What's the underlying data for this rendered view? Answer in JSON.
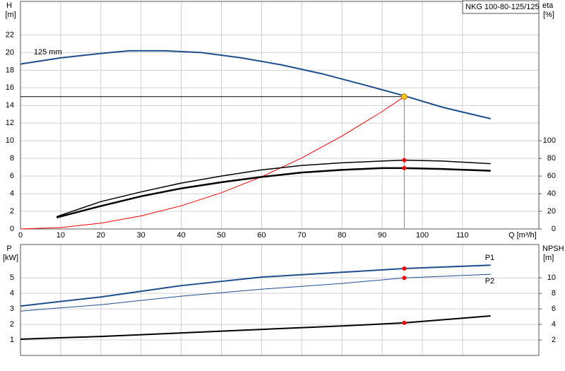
{
  "chart_data": [
    {
      "type": "line",
      "title": "NKG 100-80-125/125",
      "ylabel": "H",
      "yunit": "[m]",
      "y2label": "eta",
      "y2unit": "[%]",
      "xlabel": "Q [m³/h]",
      "xlim": [
        0,
        129
      ],
      "xticks": [
        0,
        10,
        20,
        30,
        40,
        50,
        60,
        70,
        80,
        90,
        100,
        110
      ],
      "xtick_labels": true,
      "ylim": [
        0,
        25.8
      ],
      "yticks": [
        0,
        2,
        4,
        6,
        8,
        10,
        12,
        14,
        16,
        18,
        20,
        22
      ],
      "y2lim": [
        0,
        258
      ],
      "y2ticks": [
        0,
        20,
        40,
        60,
        80,
        100
      ],
      "grid": true,
      "series": [
        {
          "name": "125 mm",
          "color": "#1f4e8c",
          "line_width": 2,
          "x": [
            0,
            10,
            20,
            27,
            36,
            45,
            55,
            65,
            75,
            85,
            95.5,
            105,
            117
          ],
          "values": [
            18.7,
            19.4,
            19.9,
            20.2,
            20.2,
            20.0,
            19.4,
            18.6,
            17.6,
            16.4,
            15.1,
            13.8,
            12.5
          ]
        },
        {
          "color": "#ff0000",
          "line_width": 1,
          "x": [
            0,
            10,
            20,
            30,
            40,
            50,
            60,
            70,
            80,
            90,
            95.5
          ],
          "values": [
            0,
            0.16,
            0.66,
            1.48,
            2.63,
            4.11,
            5.92,
            8.06,
            10.53,
            13.32,
            15.0
          ]
        },
        {
          "color": "#000000",
          "line_width": 1.5,
          "axis": "y2",
          "x": [
            9,
            20,
            30,
            40,
            50,
            60,
            70,
            80,
            90,
            95.5,
            105,
            117
          ],
          "values": [
            14,
            31,
            42,
            52,
            60,
            67,
            72,
            75,
            77,
            78,
            77,
            74
          ]
        },
        {
          "color": "#000000",
          "line_width": 2.5,
          "axis": "y2",
          "x": [
            9,
            20,
            30,
            40,
            50,
            60,
            70,
            80,
            90,
            95.5,
            105,
            117
          ],
          "values": [
            13,
            26,
            37,
            46,
            53,
            59,
            64,
            67,
            69,
            69,
            68,
            66
          ]
        }
      ],
      "points": [
        {
          "x": 95.5,
          "y": 15,
          "color": "#f5c518",
          "guides": true
        },
        {
          "x": 95.5,
          "y": 78,
          "axis": "y2",
          "color": "#ff0000"
        },
        {
          "x": 95.5,
          "y": 69,
          "axis": "y2",
          "color": "#ff0000"
        }
      ]
    },
    {
      "type": "line",
      "ylabel": "P",
      "yunit": "[kW]",
      "y2label": "NPSH",
      "y2unit": "[m]",
      "xlim": [
        0,
        129
      ],
      "xticks": [
        0,
        10,
        20,
        30,
        40,
        50,
        60,
        70,
        80,
        90,
        100,
        110
      ],
      "xtick_labels": false,
      "ylim": [
        0,
        7.15
      ],
      "yticks": [
        1,
        2,
        3,
        4,
        5
      ],
      "y2lim": [
        0,
        14.3
      ],
      "y2ticks": [
        2,
        4,
        6,
        8,
        10
      ],
      "grid": true,
      "series": [
        {
          "name": "P1",
          "color": "#1f4e8c",
          "line_width": 2,
          "x": [
            0,
            9,
            20,
            40,
            60,
            80,
            95.5,
            117
          ],
          "values": [
            3.18,
            3.45,
            3.77,
            4.5,
            5.05,
            5.36,
            5.6,
            5.82
          ]
        },
        {
          "name": "P2",
          "color": "#1f4e8c",
          "line_width": 1,
          "x": [
            0,
            9,
            20,
            40,
            60,
            80,
            95.5,
            117
          ],
          "values": [
            2.86,
            3.05,
            3.27,
            3.82,
            4.27,
            4.64,
            5.0,
            5.23
          ]
        },
        {
          "color": "#000000",
          "line_width": 2,
          "axis": "y2",
          "x": [
            0,
            9,
            20,
            40,
            60,
            80,
            95.5,
            117
          ],
          "values": [
            2.1,
            2.27,
            2.45,
            2.9,
            3.36,
            3.8,
            4.2,
            5.1
          ]
        }
      ],
      "points": [
        {
          "x": 95.5,
          "y": 5.6,
          "color": "#ff0000"
        },
        {
          "x": 95.5,
          "y": 5.0,
          "color": "#ff0000"
        },
        {
          "x": 95.5,
          "y": 4.2,
          "axis": "y2",
          "color": "#ff0000"
        }
      ]
    }
  ]
}
